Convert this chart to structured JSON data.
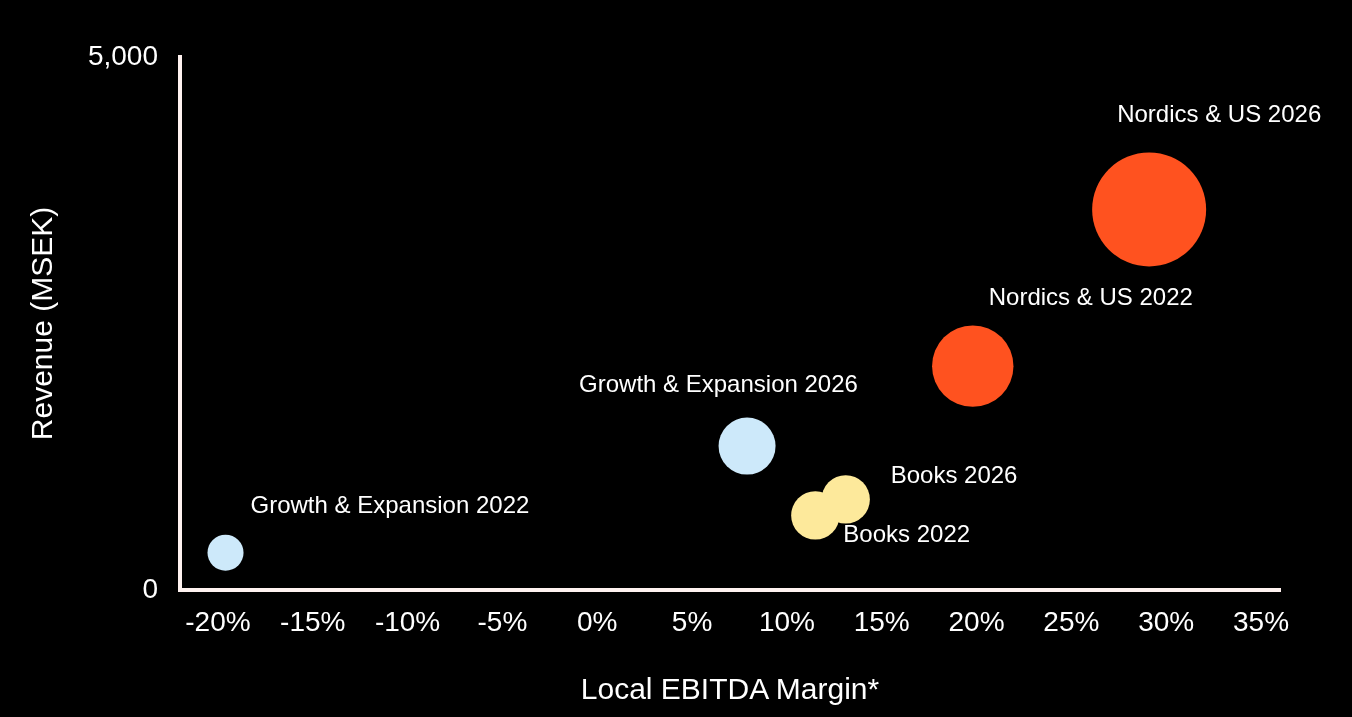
{
  "chart_data": {
    "type": "bubble",
    "xlabel": "Local EBITDA Margin*",
    "ylabel": "Revenue (MSEK)",
    "xlim": [
      -22,
      36
    ],
    "ylim": [
      0,
      5000
    ],
    "xticks": [
      {
        "value": -20,
        "label": "-20%"
      },
      {
        "value": -15,
        "label": "-15%"
      },
      {
        "value": -10,
        "label": "-10%"
      },
      {
        "value": -5,
        "label": "-5%"
      },
      {
        "value": 0,
        "label": "0%"
      },
      {
        "value": 5,
        "label": "5%"
      },
      {
        "value": 10,
        "label": "10%"
      },
      {
        "value": 15,
        "label": "15%"
      },
      {
        "value": 20,
        "label": "20%"
      },
      {
        "value": 25,
        "label": "25%"
      },
      {
        "value": 30,
        "label": "30%"
      },
      {
        "value": 35,
        "label": "35%"
      }
    ],
    "yticks": [
      0,
      {
        "value": 5000,
        "label": "5,000"
      }
    ],
    "grid": false,
    "legend": false,
    "series": [
      {
        "name": "Growth & Expansion 2022",
        "color": "#cde9fa",
        "x": [
          -19.6
        ],
        "values": [
          350
        ],
        "sizes": [
          0.1
        ]
      },
      {
        "name": "Growth & Expansion 2026",
        "color": "#cde9fa",
        "x": [
          7.9
        ],
        "values": [
          1350
        ],
        "sizes": [
          0.25
        ]
      },
      {
        "name": "Books 2022",
        "color": "#fde99b",
        "x": [
          11.5
        ],
        "values": [
          700
        ],
        "sizes": [
          0.18
        ]
      },
      {
        "name": "Books 2026",
        "color": "#fde99b",
        "x": [
          13.1
        ],
        "values": [
          850
        ],
        "sizes": [
          0.18
        ]
      },
      {
        "name": "Nordics & US 2022",
        "color": "#ff521f",
        "x": [
          19.8
        ],
        "values": [
          2100
        ],
        "sizes": [
          0.51
        ]
      },
      {
        "name": "Nordics & US 2026",
        "color": "#ff521f",
        "x": [
          29.1
        ],
        "values": [
          3570
        ],
        "sizes": [
          1
        ]
      }
    ]
  }
}
